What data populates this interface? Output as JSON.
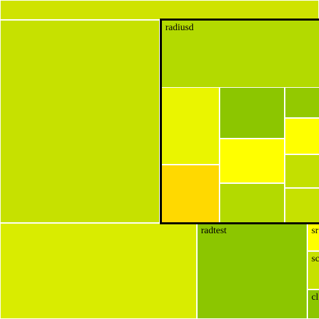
{
  "chart_data": {
    "type": "treemap",
    "cells": [
      {
        "id": "top-strip",
        "label": "",
        "color": "#cfe300"
      },
      {
        "id": "big-left",
        "label": "",
        "color": "#c6e100"
      },
      {
        "id": "bottom-left",
        "label": "",
        "color": "#d9ec00"
      },
      {
        "id": "radiusd",
        "label": "radiusd",
        "color": "#b3da00",
        "highlighted": true
      },
      {
        "id": "r-yellow-l",
        "label": "",
        "color": "#eaf500"
      },
      {
        "id": "r-orange",
        "label": "",
        "color": "#ffd900"
      },
      {
        "id": "r-green-1",
        "label": "",
        "color": "#8cc600"
      },
      {
        "id": "r-yellow-c",
        "label": "",
        "color": "#ffff00"
      },
      {
        "id": "r-green-2",
        "label": "",
        "color": "#b3da00"
      },
      {
        "id": "r-green-3",
        "label": "",
        "color": "#93c900"
      },
      {
        "id": "r-yellow-r",
        "label": "",
        "color": "#ffff00"
      },
      {
        "id": "r-green-4",
        "label": "",
        "color": "#c3e000"
      },
      {
        "id": "r-green-5",
        "label": "",
        "color": "#c6e100"
      },
      {
        "id": "radtest",
        "label": "radtest",
        "color": "#8cc600"
      },
      {
        "id": "br-1",
        "label": "sr",
        "color": "#ffff00"
      },
      {
        "id": "br-2",
        "label": "sc",
        "color": "#c6e100"
      },
      {
        "id": "br-3",
        "label": "cl",
        "color": "#8cc600"
      }
    ]
  }
}
